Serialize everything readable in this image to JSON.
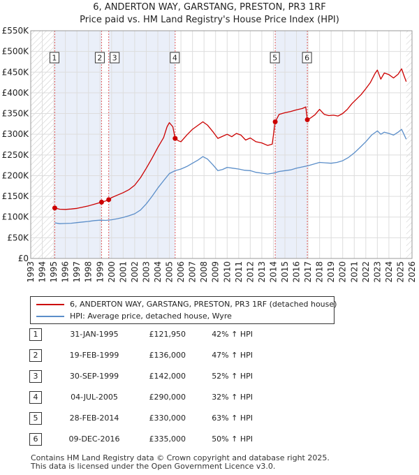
{
  "title_line1": "6, ANDERTON WAY, GARSTANG, PRESTON, PR3 1RF",
  "title_line2": "Price paid vs. HM Land Registry's House Price Index (HPI)",
  "chart_data": {
    "type": "line",
    "x_range": [
      1993,
      2026
    ],
    "ylim": [
      0,
      550000
    ],
    "y_ticks": [
      {
        "value": 0,
        "label": "£0"
      },
      {
        "value": 50000,
        "label": "£50K"
      },
      {
        "value": 100000,
        "label": "£100K"
      },
      {
        "value": 150000,
        "label": "£150K"
      },
      {
        "value": 200000,
        "label": "£200K"
      },
      {
        "value": 250000,
        "label": "£250K"
      },
      {
        "value": 300000,
        "label": "£300K"
      },
      {
        "value": 350000,
        "label": "£350K"
      },
      {
        "value": 400000,
        "label": "£400K"
      },
      {
        "value": 450000,
        "label": "£450K"
      },
      {
        "value": 500000,
        "label": "£500K"
      },
      {
        "value": 550000,
        "label": "£550K"
      }
    ],
    "x_ticks": [
      1993,
      1994,
      1995,
      1996,
      1997,
      1998,
      1999,
      2000,
      2001,
      2002,
      2003,
      2004,
      2005,
      2006,
      2007,
      2008,
      2009,
      2010,
      2011,
      2012,
      2013,
      2014,
      2015,
      2016,
      2017,
      2018,
      2019,
      2020,
      2021,
      2022,
      2023,
      2024,
      2025,
      2026
    ],
    "data_start": 1995.08,
    "data_end": 2025.5,
    "series": [
      {
        "name": "6, ANDERTON WAY, GARSTANG, PRESTON, PR3 1RF (detached house)",
        "color": "#cc0000",
        "points": [
          [
            1995.08,
            121950
          ],
          [
            1995.5,
            119000
          ],
          [
            1996.0,
            118500
          ],
          [
            1996.5,
            119500
          ],
          [
            1997.0,
            121000
          ],
          [
            1997.5,
            124000
          ],
          [
            1998.0,
            127000
          ],
          [
            1998.5,
            131000
          ],
          [
            1999.13,
            136000
          ],
          [
            1999.5,
            139000
          ],
          [
            1999.75,
            142000
          ],
          [
            2000.0,
            147000
          ],
          [
            2000.5,
            153000
          ],
          [
            2001.0,
            159000
          ],
          [
            2001.5,
            166000
          ],
          [
            2002.0,
            177000
          ],
          [
            2002.5,
            195000
          ],
          [
            2003.0,
            218000
          ],
          [
            2003.5,
            242000
          ],
          [
            2004.0,
            268000
          ],
          [
            2004.5,
            292000
          ],
          [
            2004.8,
            318000
          ],
          [
            2005.0,
            328000
          ],
          [
            2005.3,
            318000
          ],
          [
            2005.5,
            290000
          ],
          [
            2005.8,
            284000
          ],
          [
            2006.0,
            282000
          ],
          [
            2006.5,
            298000
          ],
          [
            2007.0,
            312000
          ],
          [
            2007.5,
            322000
          ],
          [
            2007.9,
            330000
          ],
          [
            2008.3,
            322000
          ],
          [
            2008.8,
            305000
          ],
          [
            2009.2,
            290000
          ],
          [
            2009.6,
            295000
          ],
          [
            2010.0,
            300000
          ],
          [
            2010.4,
            294000
          ],
          [
            2010.8,
            302000
          ],
          [
            2011.2,
            298000
          ],
          [
            2011.6,
            286000
          ],
          [
            2012.0,
            291000
          ],
          [
            2012.5,
            282000
          ],
          [
            2013.0,
            279000
          ],
          [
            2013.5,
            273000
          ],
          [
            2013.9,
            276000
          ],
          [
            2014.16,
            330000
          ],
          [
            2014.5,
            348000
          ],
          [
            2015.0,
            352000
          ],
          [
            2015.5,
            355000
          ],
          [
            2016.0,
            359000
          ],
          [
            2016.5,
            362000
          ],
          [
            2016.8,
            366000
          ],
          [
            2016.94,
            335000
          ],
          [
            2017.2,
            339000
          ],
          [
            2017.6,
            347000
          ],
          [
            2018.0,
            360000
          ],
          [
            2018.4,
            348000
          ],
          [
            2018.8,
            345000
          ],
          [
            2019.2,
            346000
          ],
          [
            2019.6,
            344000
          ],
          [
            2020.0,
            350000
          ],
          [
            2020.4,
            360000
          ],
          [
            2020.8,
            374000
          ],
          [
            2021.2,
            385000
          ],
          [
            2021.6,
            396000
          ],
          [
            2022.0,
            410000
          ],
          [
            2022.4,
            425000
          ],
          [
            2022.8,
            447000
          ],
          [
            2023.0,
            455000
          ],
          [
            2023.3,
            433000
          ],
          [
            2023.6,
            448000
          ],
          [
            2024.0,
            444000
          ],
          [
            2024.4,
            436000
          ],
          [
            2024.8,
            445000
          ],
          [
            2025.1,
            458000
          ],
          [
            2025.3,
            442000
          ],
          [
            2025.5,
            427000
          ]
        ]
      },
      {
        "name": "HPI: Average price, detached house, Wyre",
        "color": "#5b8ec9",
        "points": [
          [
            1995.08,
            86000
          ],
          [
            1995.5,
            84000
          ],
          [
            1996.0,
            84500
          ],
          [
            1996.5,
            85000
          ],
          [
            1997.0,
            86500
          ],
          [
            1997.5,
            88000
          ],
          [
            1998.0,
            89500
          ],
          [
            1998.5,
            91500
          ],
          [
            1999.0,
            92500
          ],
          [
            1999.5,
            92000
          ],
          [
            2000.0,
            93500
          ],
          [
            2000.5,
            96000
          ],
          [
            2001.0,
            99000
          ],
          [
            2001.5,
            103000
          ],
          [
            2002.0,
            108000
          ],
          [
            2002.5,
            117000
          ],
          [
            2003.0,
            132000
          ],
          [
            2003.5,
            150000
          ],
          [
            2004.0,
            170000
          ],
          [
            2004.5,
            188000
          ],
          [
            2005.0,
            205000
          ],
          [
            2005.5,
            212000
          ],
          [
            2006.0,
            216000
          ],
          [
            2006.5,
            222000
          ],
          [
            2007.0,
            230000
          ],
          [
            2007.5,
            238000
          ],
          [
            2007.9,
            246000
          ],
          [
            2008.3,
            240000
          ],
          [
            2008.8,
            225000
          ],
          [
            2009.2,
            212000
          ],
          [
            2009.6,
            215000
          ],
          [
            2010.0,
            220000
          ],
          [
            2010.5,
            218000
          ],
          [
            2011.0,
            216000
          ],
          [
            2011.5,
            213000
          ],
          [
            2012.0,
            212000
          ],
          [
            2012.5,
            208000
          ],
          [
            2013.0,
            206000
          ],
          [
            2013.5,
            204000
          ],
          [
            2014.0,
            206000
          ],
          [
            2014.5,
            210000
          ],
          [
            2015.0,
            212000
          ],
          [
            2015.5,
            214000
          ],
          [
            2016.0,
            218000
          ],
          [
            2016.5,
            221000
          ],
          [
            2017.0,
            224000
          ],
          [
            2017.5,
            228000
          ],
          [
            2018.0,
            232000
          ],
          [
            2018.5,
            231000
          ],
          [
            2019.0,
            230000
          ],
          [
            2019.5,
            232000
          ],
          [
            2020.0,
            236000
          ],
          [
            2020.5,
            244000
          ],
          [
            2021.0,
            255000
          ],
          [
            2021.5,
            268000
          ],
          [
            2022.0,
            282000
          ],
          [
            2022.5,
            298000
          ],
          [
            2023.0,
            308000
          ],
          [
            2023.3,
            300000
          ],
          [
            2023.6,
            305000
          ],
          [
            2024.0,
            302000
          ],
          [
            2024.4,
            298000
          ],
          [
            2024.8,
            305000
          ],
          [
            2025.1,
            312000
          ],
          [
            2025.3,
            300000
          ],
          [
            2025.5,
            288000
          ]
        ]
      }
    ],
    "sale_markers": [
      {
        "num": "1",
        "x": 1995.08,
        "y": 121950
      },
      {
        "num": "2",
        "x": 1999.13,
        "y": 136000
      },
      {
        "num": "3",
        "x": 1999.75,
        "y": 142000
      },
      {
        "num": "4",
        "x": 2005.5,
        "y": 290000
      },
      {
        "num": "5",
        "x": 2014.16,
        "y": 330000
      },
      {
        "num": "6",
        "x": 2016.94,
        "y": 335000
      }
    ]
  },
  "legend": {
    "property_label": "6, ANDERTON WAY, GARSTANG, PRESTON, PR3 1RF (detached house)",
    "hpi_label": "HPI: Average price, detached house, Wyre"
  },
  "sales": [
    {
      "num": "1",
      "date": "31-JAN-1995",
      "price": "£121,950",
      "hpi": "42% ↑ HPI"
    },
    {
      "num": "2",
      "date": "19-FEB-1999",
      "price": "£136,000",
      "hpi": "47% ↑ HPI"
    },
    {
      "num": "3",
      "date": "30-SEP-1999",
      "price": "£142,000",
      "hpi": "52% ↑ HPI"
    },
    {
      "num": "4",
      "date": "04-JUL-2005",
      "price": "£290,000",
      "hpi": "32% ↑ HPI"
    },
    {
      "num": "5",
      "date": "28-FEB-2014",
      "price": "£330,000",
      "hpi": "63% ↑ HPI"
    },
    {
      "num": "6",
      "date": "09-DEC-2016",
      "price": "£335,000",
      "hpi": "50% ↑ HPI"
    }
  ],
  "footer": {
    "line1": "Contains HM Land Registry data © Crown copyright and database right 2025.",
    "line2": "This data is licensed under the Open Government Licence v3.0."
  }
}
